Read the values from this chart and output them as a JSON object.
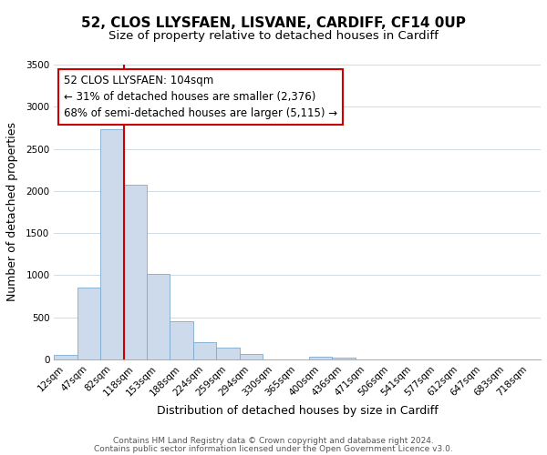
{
  "title": "52, CLOS LLYSFAEN, LISVANE, CARDIFF, CF14 0UP",
  "subtitle": "Size of property relative to detached houses in Cardiff",
  "xlabel": "Distribution of detached houses by size in Cardiff",
  "ylabel": "Number of detached properties",
  "bar_color": "#ccdaeb",
  "bar_edge_color": "#7aaad0",
  "property_line_color": "#cc0000",
  "annotation_box_edge": "#cc0000",
  "ylim": [
    0,
    3500
  ],
  "yticks": [
    0,
    500,
    1000,
    1500,
    2000,
    2500,
    3000,
    3500
  ],
  "categories": [
    "12sqm",
    "47sqm",
    "82sqm",
    "118sqm",
    "153sqm",
    "188sqm",
    "224sqm",
    "259sqm",
    "294sqm",
    "330sqm",
    "365sqm",
    "400sqm",
    "436sqm",
    "471sqm",
    "506sqm",
    "541sqm",
    "577sqm",
    "612sqm",
    "647sqm",
    "683sqm",
    "718sqm"
  ],
  "bar_heights": [
    55,
    850,
    2730,
    2075,
    1010,
    455,
    210,
    145,
    60,
    0,
    0,
    35,
    20,
    0,
    0,
    0,
    0,
    0,
    0,
    0,
    0
  ],
  "annotation_text": "52 CLOS LLYSFAEN: 104sqm\n← 31% of detached houses are smaller (2,376)\n68% of semi-detached houses are larger (5,115) →",
  "property_line_x": 2.5,
  "footer_line1": "Contains HM Land Registry data © Crown copyright and database right 2024.",
  "footer_line2": "Contains public sector information licensed under the Open Government Licence v3.0.",
  "title_fontsize": 11,
  "subtitle_fontsize": 9.5,
  "axis_label_fontsize": 9,
  "tick_fontsize": 7.5,
  "annotation_fontsize": 8.5,
  "footer_fontsize": 6.5,
  "background_color": "#ffffff",
  "grid_color": "#d0dae4"
}
